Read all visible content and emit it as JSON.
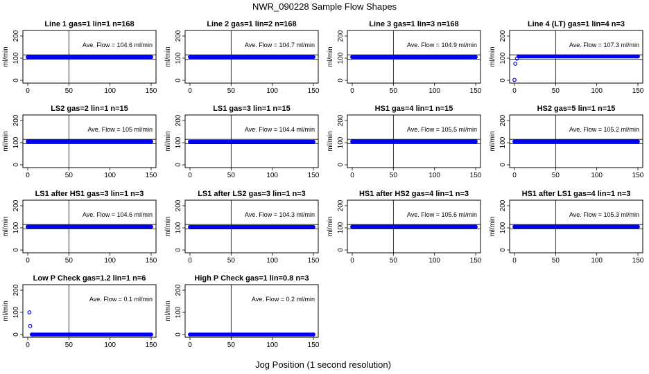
{
  "figure": {
    "title": "NWR_090228  Sample Flow Shapes",
    "xlabel": "Jog Position (1 second resolution)"
  },
  "chart_data": [
    {
      "type": "scatter",
      "title": "Line 1 gas=1 lin=1 n=168",
      "ylabel": "ml/min",
      "annotation": "Ave. Flow =  104.6  ml/min",
      "xlim": [
        0,
        150
      ],
      "ylim": [
        0,
        200
      ],
      "xticks": [
        0,
        50,
        100,
        150
      ],
      "yticks": [
        0,
        100,
        200
      ],
      "vline": 50,
      "hlines": [
        95,
        115
      ],
      "points": [
        {
          "x": 0,
          "y": 105
        },
        {
          "x": 150,
          "y": 105
        }
      ]
    },
    {
      "type": "scatter",
      "title": "Line 2 gas=1 lin=2 n=168",
      "ylabel": "ml/min",
      "annotation": "Ave. Flow =  104.7  ml/min",
      "xlim": [
        0,
        150
      ],
      "ylim": [
        0,
        200
      ],
      "xticks": [
        0,
        50,
        100,
        150
      ],
      "yticks": [
        0,
        100,
        200
      ],
      "vline": 50,
      "hlines": [
        95,
        115
      ],
      "points": [
        {
          "x": 0,
          "y": 105
        },
        {
          "x": 150,
          "y": 105
        }
      ]
    },
    {
      "type": "scatter",
      "title": "Line 3 gas=1 lin=3 n=168",
      "ylabel": "ml/min",
      "annotation": "Ave. Flow =  104.9  ml/min",
      "xlim": [
        0,
        150
      ],
      "ylim": [
        0,
        200
      ],
      "xticks": [
        0,
        50,
        100,
        150
      ],
      "yticks": [
        0,
        100,
        200
      ],
      "vline": 50,
      "hlines": [
        95,
        115
      ],
      "points": [
        {
          "x": 0,
          "y": 105
        },
        {
          "x": 150,
          "y": 105
        }
      ]
    },
    {
      "type": "scatter",
      "title": "Line 4 (LT) gas=1 lin=4 n=3",
      "ylabel": "ml/min",
      "annotation": "Ave. Flow =  107.3  ml/min",
      "xlim": [
        0,
        150
      ],
      "ylim": [
        0,
        200
      ],
      "xticks": [
        0,
        50,
        100,
        150
      ],
      "yticks": [
        0,
        100,
        200
      ],
      "vline": 50,
      "hlines": [
        95,
        115
      ],
      "points": [
        {
          "x": 0,
          "y": 2
        },
        {
          "x": 1,
          "y": 75
        },
        {
          "x": 3,
          "y": 98
        },
        {
          "x": 5,
          "y": 108
        },
        {
          "x": 150,
          "y": 108
        }
      ]
    },
    {
      "type": "scatter",
      "title": "LS2 gas=2 lin=1 n=15",
      "ylabel": "ml/min",
      "annotation": "Ave. Flow =  105  ml/min",
      "xlim": [
        0,
        150
      ],
      "ylim": [
        0,
        200
      ],
      "xticks": [
        0,
        50,
        100,
        150
      ],
      "yticks": [
        0,
        100,
        200
      ],
      "vline": 50,
      "hlines": [
        95,
        115
      ],
      "points": [
        {
          "x": 0,
          "y": 105
        },
        {
          "x": 150,
          "y": 105
        }
      ]
    },
    {
      "type": "scatter",
      "title": "LS1 gas=3 lin=1 n=15",
      "ylabel": "ml/min",
      "annotation": "Ave. Flow =  104.4  ml/min",
      "xlim": [
        0,
        150
      ],
      "ylim": [
        0,
        200
      ],
      "xticks": [
        0,
        50,
        100,
        150
      ],
      "yticks": [
        0,
        100,
        200
      ],
      "vline": 50,
      "hlines": [
        95,
        115
      ],
      "points": [
        {
          "x": 0,
          "y": 104
        },
        {
          "x": 150,
          "y": 104
        }
      ]
    },
    {
      "type": "scatter",
      "title": "HS1 gas=4 lin=1 n=15",
      "ylabel": "ml/min",
      "annotation": "Ave. Flow =  105.5  ml/min",
      "xlim": [
        0,
        150
      ],
      "ylim": [
        0,
        200
      ],
      "xticks": [
        0,
        50,
        100,
        150
      ],
      "yticks": [
        0,
        100,
        200
      ],
      "vline": 50,
      "hlines": [
        95,
        115
      ],
      "points": [
        {
          "x": 0,
          "y": 105
        },
        {
          "x": 150,
          "y": 105
        }
      ]
    },
    {
      "type": "scatter",
      "title": "HS2 gas=5 lin=1 n=15",
      "ylabel": "ml/min",
      "annotation": "Ave. Flow =  105.2  ml/min",
      "xlim": [
        0,
        150
      ],
      "ylim": [
        0,
        200
      ],
      "xticks": [
        0,
        50,
        100,
        150
      ],
      "yticks": [
        0,
        100,
        200
      ],
      "vline": 50,
      "hlines": [
        95,
        115
      ],
      "points": [
        {
          "x": 0,
          "y": 105
        },
        {
          "x": 150,
          "y": 105
        }
      ]
    },
    {
      "type": "scatter",
      "title": "LS1 after HS1 gas=3 lin=1 n=3",
      "ylabel": "ml/min",
      "annotation": "Ave. Flow =  104.6  ml/min",
      "xlim": [
        0,
        150
      ],
      "ylim": [
        0,
        200
      ],
      "xticks": [
        0,
        50,
        100,
        150
      ],
      "yticks": [
        0,
        100,
        200
      ],
      "vline": 50,
      "hlines": [
        95,
        115
      ],
      "points": [
        {
          "x": 0,
          "y": 105
        },
        {
          "x": 150,
          "y": 105
        }
      ]
    },
    {
      "type": "scatter",
      "title": "LS1 after LS2 gas=3 lin=1 n=3",
      "ylabel": "ml/min",
      "annotation": "Ave. Flow =  104.3  ml/min",
      "xlim": [
        0,
        150
      ],
      "ylim": [
        0,
        200
      ],
      "xticks": [
        0,
        50,
        100,
        150
      ],
      "yticks": [
        0,
        100,
        200
      ],
      "vline": 50,
      "hlines": [
        95,
        115
      ],
      "points": [
        {
          "x": 0,
          "y": 104
        },
        {
          "x": 150,
          "y": 104
        }
      ]
    },
    {
      "type": "scatter",
      "title": "HS1 after HS2 gas=4 lin=1 n=3",
      "ylabel": "ml/min",
      "annotation": "Ave. Flow =  105.6  ml/min",
      "xlim": [
        0,
        150
      ],
      "ylim": [
        0,
        200
      ],
      "xticks": [
        0,
        50,
        100,
        150
      ],
      "yticks": [
        0,
        100,
        200
      ],
      "vline": 50,
      "hlines": [
        95,
        115
      ],
      "points": [
        {
          "x": 0,
          "y": 105
        },
        {
          "x": 150,
          "y": 105
        }
      ]
    },
    {
      "type": "scatter",
      "title": "HS1 after LS1 gas=4 lin=1 n=3",
      "ylabel": "ml/min",
      "annotation": "Ave. Flow =  105.3  ml/min",
      "xlim": [
        0,
        150
      ],
      "ylim": [
        0,
        200
      ],
      "xticks": [
        0,
        50,
        100,
        150
      ],
      "yticks": [
        0,
        100,
        200
      ],
      "vline": 50,
      "hlines": [
        95,
        115
      ],
      "points": [
        {
          "x": 0,
          "y": 105
        },
        {
          "x": 150,
          "y": 105
        }
      ]
    },
    {
      "type": "scatter",
      "title": "Low P Check gas=1.2 lin=1 n=6",
      "ylabel": "ml/min",
      "annotation": "Ave. Flow =  0.1  ml/min",
      "xlim": [
        0,
        150
      ],
      "ylim": [
        0,
        200
      ],
      "xticks": [
        0,
        50,
        100,
        150
      ],
      "yticks": [
        0,
        100,
        200
      ],
      "vline": 50,
      "hlines": [],
      "points": [
        {
          "x": 2,
          "y": 100
        },
        {
          "x": 3,
          "y": 38
        },
        {
          "x": 5,
          "y": 0
        },
        {
          "x": 150,
          "y": 0
        }
      ]
    },
    {
      "type": "scatter",
      "title": "High P Check gas=1 lin=0.8 n=3",
      "ylabel": "ml/min",
      "annotation": "Ave. Flow =  0.2  ml/min",
      "xlim": [
        0,
        150
      ],
      "ylim": [
        0,
        200
      ],
      "xticks": [
        0,
        50,
        100,
        150
      ],
      "yticks": [
        0,
        100,
        200
      ],
      "vline": 50,
      "hlines": [],
      "points": [
        {
          "x": 0,
          "y": 0
        },
        {
          "x": 150,
          "y": 0
        }
      ]
    }
  ],
  "colors": {
    "points": "#0000ff",
    "lines": "#000000"
  }
}
